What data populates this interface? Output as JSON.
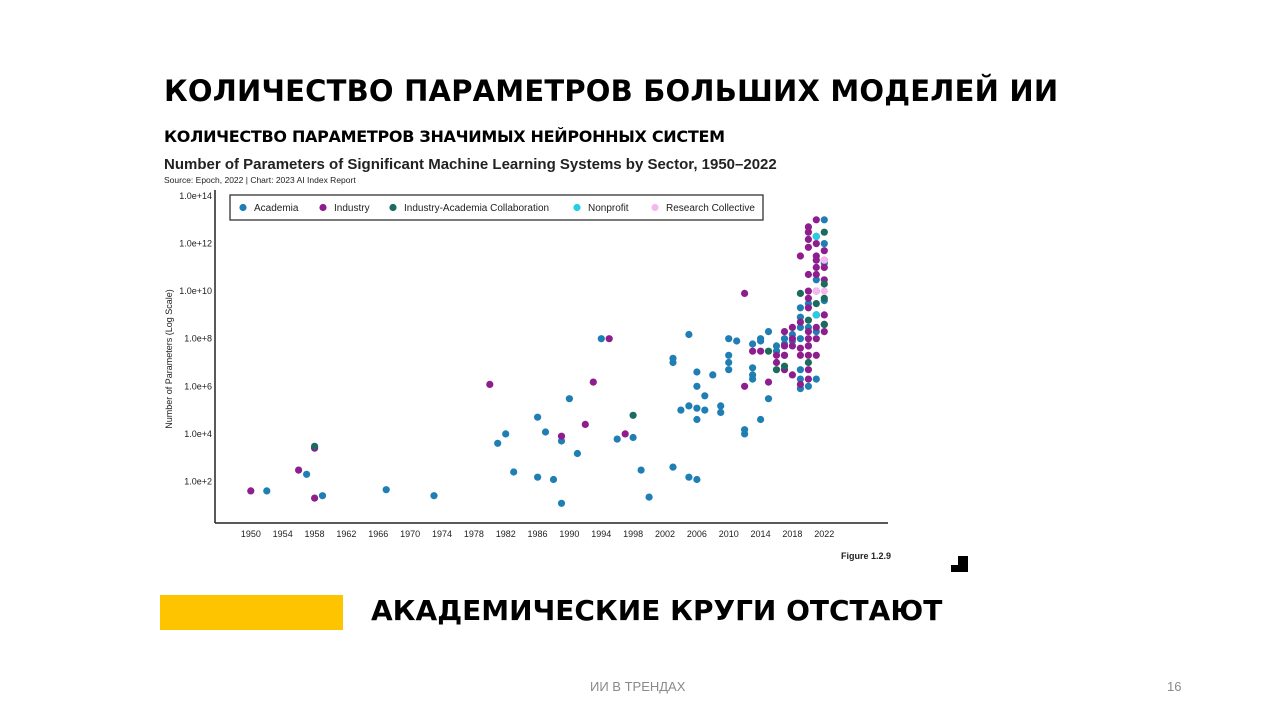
{
  "slide": {
    "title": "КОЛИЧЕСТВО ПАРАМЕТРОВ БОЛЬШИХ МОДЕЛЕЙ ИИ",
    "subtitle": "КОЛИЧЕСТВО ПАРАМЕТРОВ ЗНАЧИМЫХ НЕЙРОННЫХ СИСТЕМ",
    "bottom_heading": "АКАДЕМИЧЕСКИЕ КРУГИ ОТСТАЮТ",
    "footer": "ИИ В ТРЕНДАХ",
    "page_number": "16",
    "accent_color": "#ffc400"
  },
  "chart_data": {
    "type": "scatter",
    "title": "Number of Parameters of Significant Machine Learning Systems by Sector, 1950–2022",
    "source": "Source: Epoch, 2022 | Chart: 2023 AI Index Report",
    "figure_label": "Figure 1.2.9",
    "ylabel": "Number of Parameters (Log Scale)",
    "xlabel": "",
    "y_scale": "log",
    "xlim": [
      1945.5,
      2030
    ],
    "ylim": [
      1,
      100000000000000.0
    ],
    "x_ticks": [
      1950,
      1954,
      1958,
      1962,
      1966,
      1970,
      1974,
      1978,
      1982,
      1986,
      1990,
      1994,
      1998,
      2002,
      2006,
      2010,
      2014,
      2018,
      2022
    ],
    "y_ticks": [
      {
        "value": 100,
        "label": "1.0e+2"
      },
      {
        "value": 10000,
        "label": "1.0e+4"
      },
      {
        "value": 1000000,
        "label": "1.0e+6"
      },
      {
        "value": 100000000,
        "label": "1.0e+8"
      },
      {
        "value": 10000000000,
        "label": "1.0e+10"
      },
      {
        "value": 1000000000000,
        "label": "1.0e+12"
      },
      {
        "value": 100000000000000,
        "label": "1.0e+14"
      }
    ],
    "grid": false,
    "legend_position": "top-left",
    "series": [
      {
        "name": "Academia",
        "color": "#1f7fb4",
        "points": [
          [
            1952,
            40
          ],
          [
            1957,
            200
          ],
          [
            1959,
            25
          ],
          [
            1967,
            45
          ],
          [
            1973,
            25
          ],
          [
            1981,
            4000
          ],
          [
            1982,
            10000
          ],
          [
            1983,
            250
          ],
          [
            1986,
            50000
          ],
          [
            1986,
            150
          ],
          [
            1987,
            12000
          ],
          [
            1988,
            120
          ],
          [
            1989,
            5000
          ],
          [
            1989,
            12
          ],
          [
            1990,
            300000
          ],
          [
            1991,
            1500
          ],
          [
            1994,
            100000000
          ],
          [
            1996,
            6000
          ],
          [
            1998,
            7000
          ],
          [
            1999,
            300
          ],
          [
            2000,
            22
          ],
          [
            2003,
            15000000
          ],
          [
            2003,
            10000000
          ],
          [
            2003,
            400
          ],
          [
            2004,
            100000
          ],
          [
            2005,
            150000
          ],
          [
            2005,
            150
          ],
          [
            2005,
            150000000
          ],
          [
            2006,
            4000000
          ],
          [
            2006,
            120000
          ],
          [
            2006,
            1000000
          ],
          [
            2006,
            40000
          ],
          [
            2006,
            120
          ],
          [
            2007,
            400000
          ],
          [
            2007,
            100000
          ],
          [
            2008,
            3000000
          ],
          [
            2009,
            150000
          ],
          [
            2009,
            80000
          ],
          [
            2010,
            100000000
          ],
          [
            2010,
            20000000
          ],
          [
            2010,
            10000000
          ],
          [
            2010,
            5000000
          ],
          [
            2011,
            80000000
          ],
          [
            2012,
            10000
          ],
          [
            2012,
            15000
          ],
          [
            2013,
            6000000
          ],
          [
            2013,
            3000000
          ],
          [
            2013,
            2000000
          ],
          [
            2013,
            60000000
          ],
          [
            2014,
            40000
          ],
          [
            2014,
            100000000
          ],
          [
            2014,
            80000000
          ],
          [
            2015,
            300000
          ],
          [
            2015,
            200000000
          ],
          [
            2016,
            50000000
          ],
          [
            2016,
            30000000
          ],
          [
            2017,
            100000000
          ],
          [
            2017,
            60000000
          ],
          [
            2017,
            20000000
          ],
          [
            2018,
            150000000
          ],
          [
            2018,
            80000000
          ],
          [
            2019,
            2000000000
          ],
          [
            2019,
            800000000
          ],
          [
            2019,
            300000000
          ],
          [
            2019,
            100000000
          ],
          [
            2019,
            5000000
          ],
          [
            2019,
            2000000
          ],
          [
            2019,
            800000
          ],
          [
            2020,
            1000000
          ],
          [
            2020,
            50000000
          ],
          [
            2020,
            300000000
          ],
          [
            2020,
            3000000000
          ],
          [
            2021,
            200000000
          ],
          [
            2021,
            30000000000
          ],
          [
            2021,
            2000000
          ],
          [
            2021,
            1000000000
          ],
          [
            2022,
            4000000000
          ],
          [
            2022,
            150000000000
          ],
          [
            2022,
            1000000000000
          ],
          [
            2022,
            10000000000000
          ]
        ]
      },
      {
        "name": "Industry",
        "color": "#8e1e8e",
        "points": [
          [
            1950,
            40
          ],
          [
            1956,
            300
          ],
          [
            1958,
            2500
          ],
          [
            1958,
            20
          ],
          [
            1980,
            1200000
          ],
          [
            1989,
            8000
          ],
          [
            1992,
            25000
          ],
          [
            1993,
            1500000
          ],
          [
            1995,
            100000000
          ],
          [
            1997,
            10000
          ],
          [
            2012,
            8000000000
          ],
          [
            2012,
            1000000
          ],
          [
            2013,
            30000000
          ],
          [
            2014,
            30000000
          ],
          [
            2015,
            1500000
          ],
          [
            2016,
            20000000
          ],
          [
            2016,
            10000000
          ],
          [
            2017,
            5000000
          ],
          [
            2017,
            20000000
          ],
          [
            2017,
            200000000
          ],
          [
            2017,
            50000000
          ],
          [
            2018,
            100000000
          ],
          [
            2018,
            300000000
          ],
          [
            2018,
            50000000
          ],
          [
            2018,
            3000000
          ],
          [
            2019,
            1200000
          ],
          [
            2019,
            500000000
          ],
          [
            2019,
            40000000
          ],
          [
            2019,
            20000000
          ],
          [
            2019,
            300000000000
          ],
          [
            2020,
            50000000000
          ],
          [
            2020,
            10000000000
          ],
          [
            2020,
            5000000000
          ],
          [
            2020,
            2000000000
          ],
          [
            2020,
            200000000
          ],
          [
            2020,
            100000000
          ],
          [
            2020,
            50000000
          ],
          [
            2020,
            20000000
          ],
          [
            2020,
            5000000
          ],
          [
            2020,
            2000000
          ],
          [
            2020,
            1500000000000
          ],
          [
            2020,
            700000000000
          ],
          [
            2020,
            5000000000000
          ],
          [
            2020,
            3000000000000
          ],
          [
            2021,
            2000000000000
          ],
          [
            2021,
            1000000000000
          ],
          [
            2021,
            200000000000
          ],
          [
            2021,
            50000000000
          ],
          [
            2021,
            10000000000
          ],
          [
            2021,
            1000000000
          ],
          [
            2021,
            300000000
          ],
          [
            2021,
            100000000
          ],
          [
            2021,
            20000000
          ],
          [
            2021,
            300000000000
          ],
          [
            2021,
            100000000000
          ],
          [
            2021,
            10000000000000.0
          ],
          [
            2022,
            500000000000
          ],
          [
            2022,
            200000000000
          ],
          [
            2022,
            100000000000
          ],
          [
            2022,
            30000000000
          ],
          [
            2022,
            1000000000
          ],
          [
            2022,
            400000000
          ],
          [
            2022,
            200000000
          ]
        ]
      },
      {
        "name": "Industry-Academia Collaboration",
        "color": "#1b6b5e",
        "points": [
          [
            1958,
            3000
          ],
          [
            1998,
            60000
          ],
          [
            2015,
            30000000
          ],
          [
            2016,
            5000000
          ],
          [
            2017,
            7000000
          ],
          [
            2019,
            8000000000
          ],
          [
            2020,
            10000000
          ],
          [
            2020,
            600000000
          ],
          [
            2021,
            3000000000
          ],
          [
            2022,
            3000000000000
          ],
          [
            2022,
            20000000000
          ],
          [
            2022,
            5000000000
          ],
          [
            2022,
            400000000
          ]
        ]
      },
      {
        "name": "Nonprofit",
        "color": "#22cfe3",
        "points": [
          [
            2021,
            2000000000000
          ],
          [
            2021,
            10000000000
          ],
          [
            2021,
            1000000000
          ]
        ]
      },
      {
        "name": "Research Collective",
        "color": "#f4b8ec",
        "points": [
          [
            2021,
            10000000000
          ],
          [
            2022,
            200000000000
          ],
          [
            2022,
            10000000000
          ]
        ]
      }
    ]
  }
}
